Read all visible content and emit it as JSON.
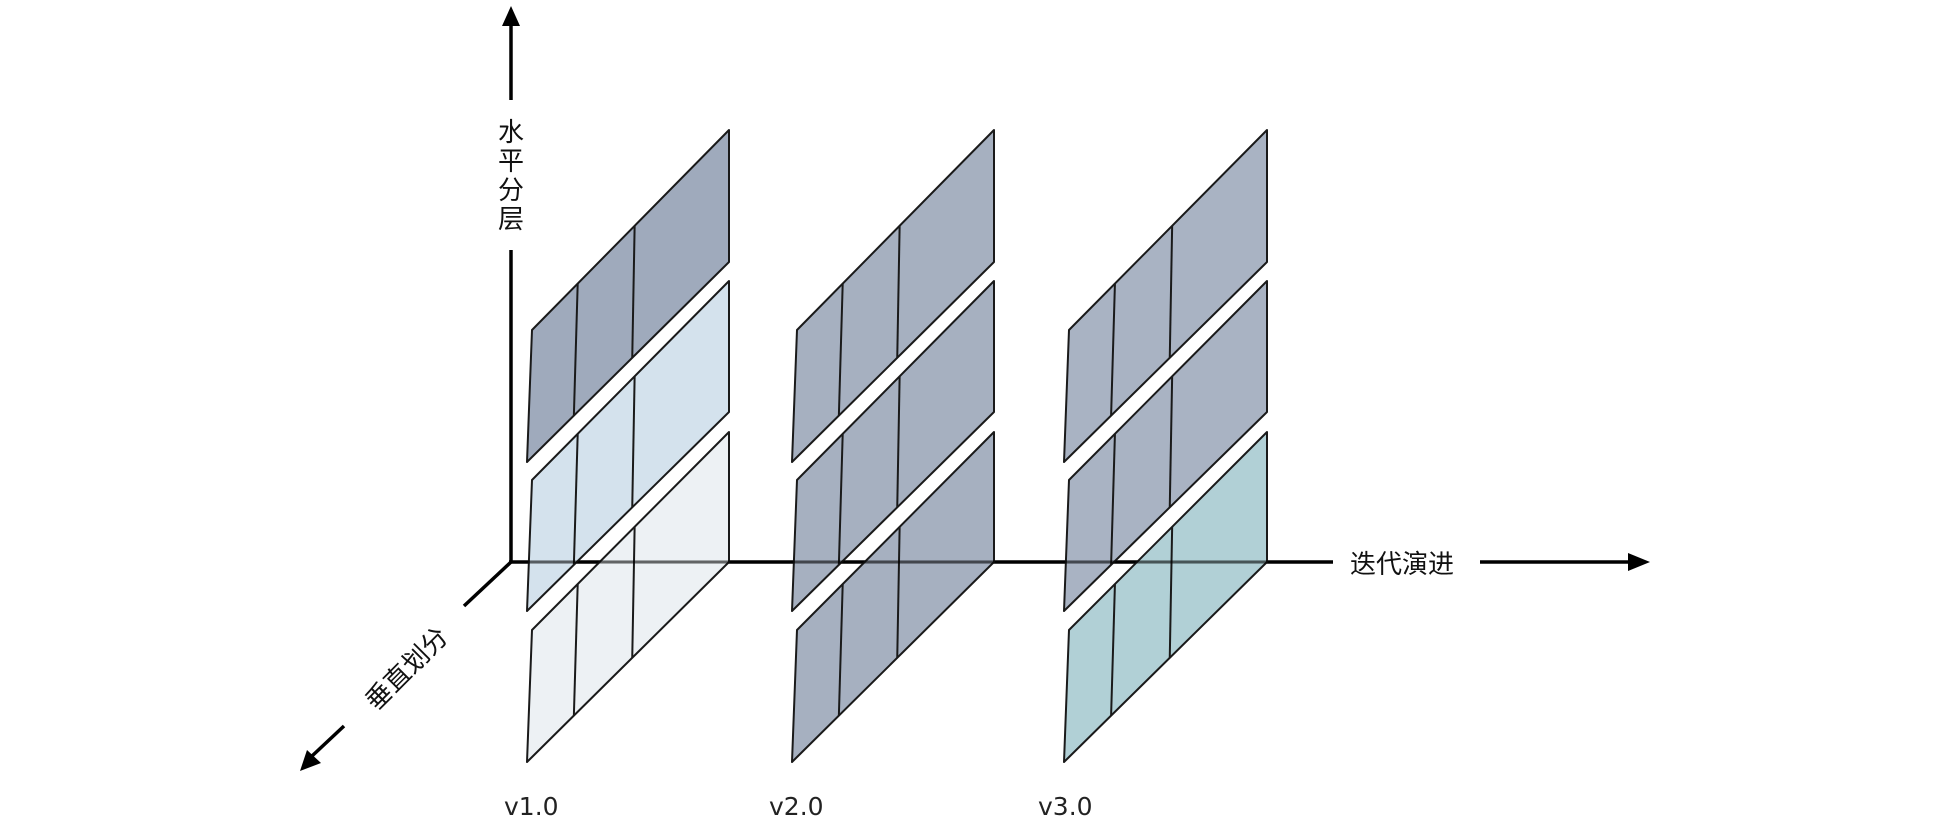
{
  "axes": {
    "vertical_label_chars": [
      "水",
      "平",
      "分",
      "层"
    ],
    "horizontal_label": "迭代演进",
    "depth_label": "垂直划分"
  },
  "versions": [
    {
      "label": "v1.0",
      "layers": [
        {
          "color": "#97a3b6"
        },
        {
          "color": "#d0dfeb"
        },
        {
          "color": "#ecf0f3"
        }
      ]
    },
    {
      "label": "v2.0",
      "layers": [
        {
          "color": "#9ea9bb"
        },
        {
          "color": "#9ea9bb"
        },
        {
          "color": "#9ea9bb"
        }
      ]
    },
    {
      "label": "v3.0",
      "layers": [
        {
          "color": "#a2adbe"
        },
        {
          "color": "#a2adbe"
        },
        {
          "color": "#aaccd2"
        }
      ]
    }
  ],
  "colors": {
    "stroke": "#1a1a1a",
    "axis": "#000000"
  }
}
